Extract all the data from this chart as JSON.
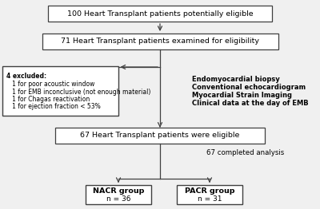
{
  "bg_color": "#f0f0f0",
  "box_bg": "#ffffff",
  "box_edge": "#404040",
  "text_color": "#000000",
  "line_color": "#404040",
  "box1_text": "100 Heart Transplant patients potentially eligible",
  "box2_text": "71 Heart Transplant patients examined for eligibility",
  "excl_lines": [
    "4 excluded:",
    "   1 for poor acoustic window",
    "   1 for EMB inconclusive (not enough material)",
    "   1 for Chagas reactivation",
    "   1 for ejection fraction < 53%"
  ],
  "right_lines": [
    "Endomyocardial biopsy",
    "Conventional echocardiogram",
    "Myocardial Strain Imaging",
    "Clinical data at the day of EMB"
  ],
  "box3_text": "67 Heart Transplant patients were eligible",
  "completed_text": "67 completed analysis",
  "nacr_line1": "NACR group",
  "nacr_line2": "n = 36",
  "pacr_line1": "PACR group",
  "pacr_line2": "n = 31",
  "figsize": [
    4.0,
    2.62
  ],
  "dpi": 100
}
